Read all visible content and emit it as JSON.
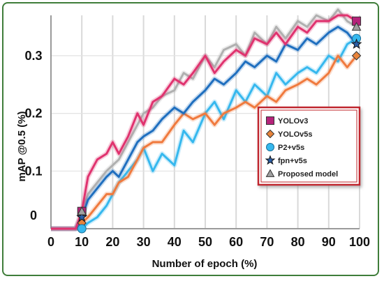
{
  "chart_data": {
    "type": "line",
    "title": "",
    "xlabel": "Number of epoch (%)",
    "ylabel": "mAP @0.5 (%)",
    "xlim": [
      0,
      100
    ],
    "ylim": [
      0,
      0.37
    ],
    "xticks": [
      0,
      10,
      20,
      30,
      40,
      50,
      60,
      70,
      80,
      90,
      100
    ],
    "yticks": [
      0,
      0.1,
      0.2,
      0.3
    ],
    "ytick_labels": [
      "0",
      "0.1",
      "0.2",
      "0.3"
    ],
    "grid": true,
    "legend_position": "right-middle",
    "series": [
      {
        "name": "YOLOv3",
        "color": "#e0336f",
        "marker": "square",
        "marker_color": "#b5237a",
        "x": [
          0,
          8,
          10,
          12,
          15,
          18,
          20,
          22,
          25,
          28,
          30,
          33,
          36,
          40,
          43,
          46,
          50,
          53,
          56,
          60,
          63,
          66,
          70,
          73,
          76,
          80,
          83,
          86,
          90,
          93,
          96,
          99
        ],
        "y": [
          0,
          0,
          0.03,
          0.09,
          0.12,
          0.13,
          0.15,
          0.13,
          0.16,
          0.2,
          0.18,
          0.22,
          0.23,
          0.26,
          0.25,
          0.27,
          0.3,
          0.27,
          0.29,
          0.31,
          0.3,
          0.33,
          0.32,
          0.34,
          0.32,
          0.35,
          0.34,
          0.36,
          0.36,
          0.37,
          0.37,
          0.36
        ]
      },
      {
        "name": "YOLOv5s",
        "color": "#f07a3e",
        "marker": "diamond",
        "marker_color": "#e8833a",
        "x": [
          0,
          8,
          10,
          12,
          15,
          18,
          20,
          22,
          25,
          28,
          30,
          33,
          36,
          40,
          43,
          46,
          50,
          53,
          56,
          60,
          63,
          66,
          70,
          73,
          76,
          80,
          83,
          86,
          90,
          93,
          96,
          99
        ],
        "y": [
          0,
          0,
          0.01,
          0.02,
          0.04,
          0.06,
          0.06,
          0.08,
          0.09,
          0.12,
          0.14,
          0.15,
          0.15,
          0.18,
          0.2,
          0.19,
          0.2,
          0.18,
          0.2,
          0.21,
          0.22,
          0.21,
          0.23,
          0.22,
          0.24,
          0.25,
          0.26,
          0.25,
          0.27,
          0.3,
          0.28,
          0.3
        ]
      },
      {
        "name": "P2+v5s",
        "color": "#36b8ee",
        "marker": "circle",
        "marker_color": "#36b8ee",
        "x": [
          0,
          8,
          10,
          12,
          15,
          18,
          20,
          22,
          25,
          28,
          30,
          33,
          36,
          40,
          43,
          46,
          50,
          53,
          56,
          60,
          63,
          66,
          70,
          73,
          76,
          80,
          83,
          86,
          90,
          93,
          96,
          99
        ],
        "y": [
          0,
          0,
          0.0,
          0.01,
          0.02,
          0.04,
          0.06,
          0.08,
          0.1,
          0.12,
          0.14,
          0.1,
          0.13,
          0.11,
          0.17,
          0.15,
          0.2,
          0.22,
          0.19,
          0.24,
          0.22,
          0.25,
          0.23,
          0.27,
          0.25,
          0.27,
          0.28,
          0.27,
          0.3,
          0.29,
          0.32,
          0.33
        ]
      },
      {
        "name": "fpn+v5s",
        "color": "#1f6fbf",
        "marker": "star",
        "marker_color": "#2b5fa8",
        "x": [
          0,
          8,
          10,
          12,
          15,
          18,
          20,
          22,
          25,
          28,
          30,
          33,
          36,
          40,
          43,
          46,
          50,
          53,
          56,
          60,
          63,
          66,
          70,
          73,
          76,
          80,
          83,
          86,
          90,
          93,
          96,
          99
        ],
        "y": [
          0,
          0,
          0.02,
          0.05,
          0.07,
          0.09,
          0.1,
          0.09,
          0.12,
          0.15,
          0.16,
          0.17,
          0.19,
          0.21,
          0.2,
          0.22,
          0.24,
          0.26,
          0.25,
          0.27,
          0.29,
          0.28,
          0.3,
          0.29,
          0.32,
          0.31,
          0.33,
          0.32,
          0.34,
          0.35,
          0.34,
          0.32
        ]
      },
      {
        "name": "Proposed model",
        "color": "#b0b0b0",
        "marker": "triangle",
        "marker_color": "#a0a0a0",
        "x": [
          0,
          8,
          10,
          12,
          15,
          18,
          20,
          22,
          25,
          28,
          30,
          33,
          36,
          40,
          43,
          46,
          50,
          53,
          56,
          60,
          63,
          66,
          70,
          73,
          76,
          80,
          83,
          86,
          90,
          93,
          96,
          99
        ],
        "y": [
          0,
          0,
          0.03,
          0.06,
          0.08,
          0.1,
          0.11,
          0.12,
          0.15,
          0.18,
          0.2,
          0.21,
          0.23,
          0.24,
          0.27,
          0.26,
          0.3,
          0.28,
          0.31,
          0.32,
          0.3,
          0.34,
          0.32,
          0.35,
          0.33,
          0.36,
          0.35,
          0.37,
          0.36,
          0.38,
          0.36,
          0.35
        ]
      }
    ]
  }
}
